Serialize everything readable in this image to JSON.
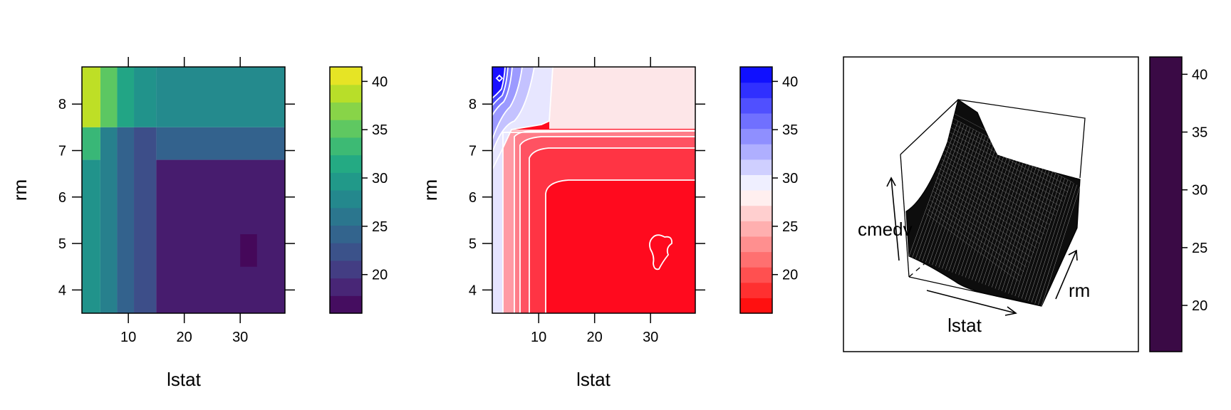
{
  "chart_data": [
    {
      "type": "heatmap",
      "variant": "level-plot",
      "palette": "viridis",
      "xlabel": "lstat",
      "ylabel": "rm",
      "xlim": [
        1.7,
        38.0
      ],
      "ylim": [
        3.5,
        8.8
      ],
      "x_ticks": [
        "10",
        "20",
        "30"
      ],
      "y_ticks": [
        "4",
        "5",
        "6",
        "7",
        "8"
      ],
      "colorkey": {
        "ticks": [
          "20",
          "25",
          "30",
          "35",
          "40"
        ],
        "range": [
          16,
          41.5
        ]
      },
      "regions": [
        {
          "lstat": [
            1.7,
            5
          ],
          "rm": [
            7.5,
            8.8
          ],
          "value": 39
        },
        {
          "lstat": [
            5,
            8
          ],
          "rm": [
            7.5,
            8.8
          ],
          "value": 35
        },
        {
          "lstat": [
            8,
            11
          ],
          "rm": [
            7.5,
            8.8
          ],
          "value": 31
        },
        {
          "lstat": [
            11,
            15
          ],
          "rm": [
            7.5,
            8.8
          ],
          "value": 29
        },
        {
          "lstat": [
            15,
            38
          ],
          "rm": [
            7.5,
            8.8
          ],
          "value": 28
        },
        {
          "lstat": [
            1.7,
            5
          ],
          "rm": [
            6.8,
            7.5
          ],
          "value": 33
        },
        {
          "lstat": [
            1.7,
            5
          ],
          "rm": [
            3.5,
            6.8
          ],
          "value": 29
        },
        {
          "lstat": [
            5,
            8
          ],
          "rm": [
            3.5,
            7.5
          ],
          "value": 27
        },
        {
          "lstat": [
            8,
            11
          ],
          "rm": [
            3.5,
            7.5
          ],
          "value": 24
        },
        {
          "lstat": [
            11,
            15
          ],
          "rm": [
            3.5,
            7.5
          ],
          "value": 22
        },
        {
          "lstat": [
            15,
            38
          ],
          "rm": [
            6.8,
            7.5
          ],
          "value": 24
        },
        {
          "lstat": [
            15,
            38
          ],
          "rm": [
            3.5,
            6.8
          ],
          "value": 18
        },
        {
          "lstat": [
            30,
            33
          ],
          "rm": [
            4.5,
            5.2
          ],
          "value": 16.5
        }
      ]
    },
    {
      "type": "heatmap",
      "variant": "contour-plot",
      "palette": "red-white-blue",
      "xlabel": "lstat",
      "ylabel": "rm",
      "xlim": [
        1.7,
        38.0
      ],
      "ylim": [
        3.5,
        8.8
      ],
      "x_ticks": [
        "10",
        "20",
        "30"
      ],
      "y_ticks": [
        "4",
        "5",
        "6",
        "7",
        "8"
      ],
      "colorkey": {
        "ticks": [
          "20",
          "25",
          "30",
          "35",
          "40"
        ],
        "range": [
          16,
          41.5
        ]
      },
      "contour_lines": true
    },
    {
      "type": "surface",
      "variant": "wireframe",
      "xlabel": "lstat",
      "ylabel": "rm",
      "zlabel": "cmedv",
      "colorkey": {
        "ticks": [
          "20",
          "25",
          "30",
          "35",
          "40"
        ],
        "range": [
          16,
          41.5
        ]
      }
    }
  ]
}
